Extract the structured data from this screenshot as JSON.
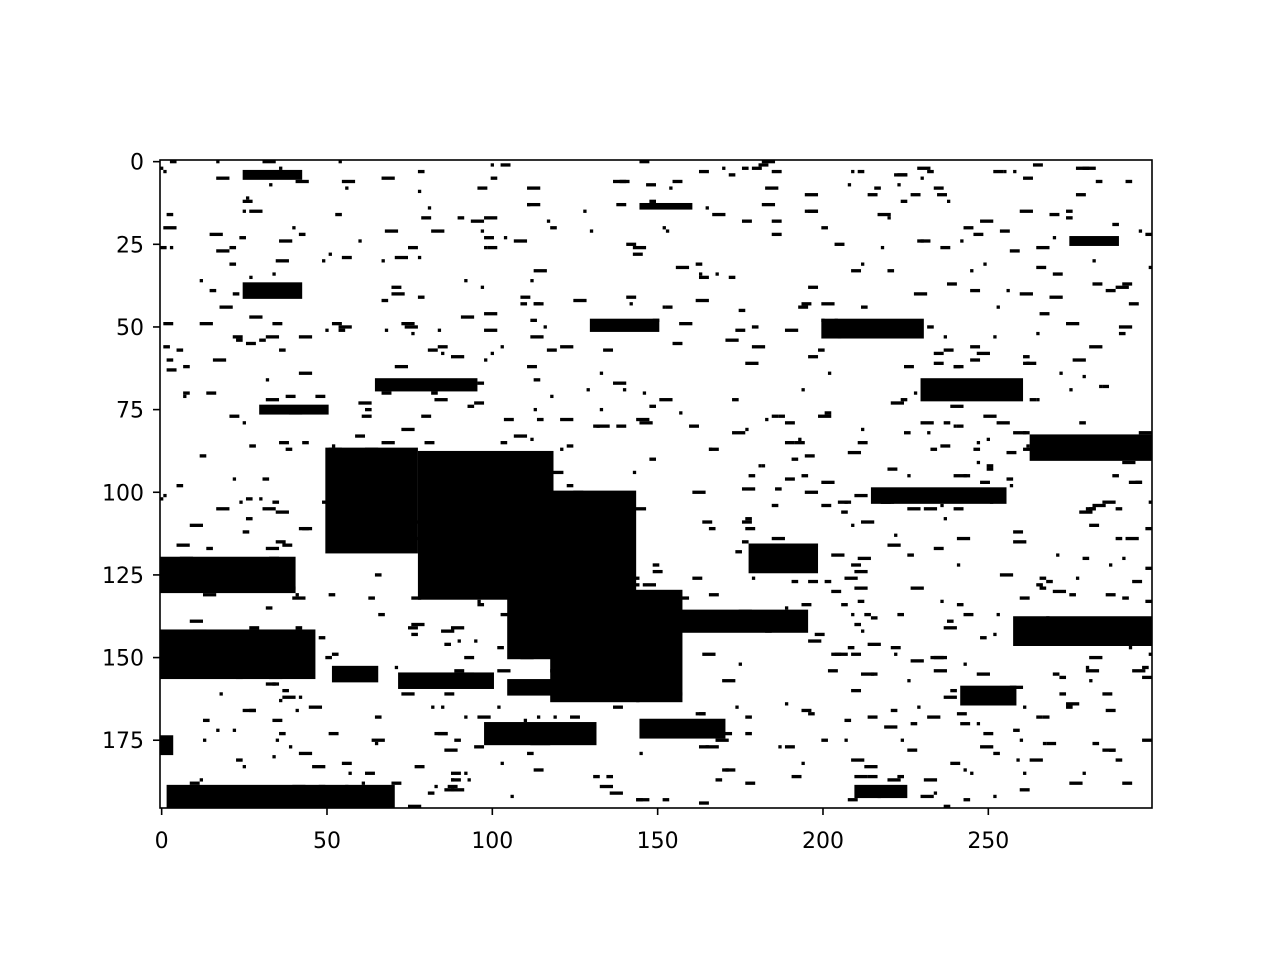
{
  "chart_data": {
    "type": "heatmap",
    "title": "",
    "xlabel": "",
    "ylabel": "",
    "colormap": "binary",
    "colors": {
      "foreground": "#000000",
      "background": "#ffffff"
    },
    "xlim": [
      0,
      299
    ],
    "ylim": [
      195,
      0
    ],
    "y_axis_inverted": true,
    "grid": false,
    "legend": "none",
    "x_ticks": [
      0,
      50,
      100,
      150,
      200,
      250
    ],
    "y_ticks": [
      0,
      25,
      50,
      75,
      100,
      125,
      150,
      175
    ],
    "x_tick_labels": [
      "0",
      "50",
      "100",
      "150",
      "200",
      "250"
    ],
    "y_tick_labels": [
      "0",
      "25",
      "50",
      "75",
      "100",
      "125",
      "150",
      "175"
    ],
    "image_width": 300,
    "image_height": 196,
    "regions": [
      {
        "x": [
          50,
          77
        ],
        "y": [
          87,
          118
        ]
      },
      {
        "x": [
          78,
          118
        ],
        "y": [
          88,
          132
        ]
      },
      {
        "x": [
          105,
          143
        ],
        "y": [
          100,
          150
        ]
      },
      {
        "x": [
          118,
          157
        ],
        "y": [
          130,
          163
        ]
      },
      {
        "x": [
          0,
          46
        ],
        "y": [
          142,
          156
        ]
      },
      {
        "x": [
          52,
          65
        ],
        "y": [
          153,
          157
        ]
      },
      {
        "x": [
          72,
          100
        ],
        "y": [
          155,
          159
        ]
      },
      {
        "x": [
          105,
          124
        ],
        "y": [
          157,
          161
        ]
      },
      {
        "x": [
          263,
          299
        ],
        "y": [
          83,
          90
        ]
      },
      {
        "x": [
          258,
          299
        ],
        "y": [
          138,
          146
        ]
      },
      {
        "x": [
          242,
          258
        ],
        "y": [
          159,
          164
        ]
      },
      {
        "x": [
          98,
          131
        ],
        "y": [
          170,
          176
        ]
      },
      {
        "x": [
          145,
          170
        ],
        "y": [
          169,
          174
        ]
      },
      {
        "x": [
          150,
          195
        ],
        "y": [
          136,
          142
        ]
      },
      {
        "x": [
          178,
          198
        ],
        "y": [
          116,
          124
        ]
      },
      {
        "x": [
          215,
          255
        ],
        "y": [
          99,
          103
        ]
      },
      {
        "x": [
          230,
          260
        ],
        "y": [
          66,
          72
        ]
      },
      {
        "x": [
          0,
          40
        ],
        "y": [
          120,
          130
        ]
      },
      {
        "x": [
          25,
          42
        ],
        "y": [
          37,
          41
        ]
      },
      {
        "x": [
          30,
          50
        ],
        "y": [
          74,
          76
        ]
      },
      {
        "x": [
          65,
          95
        ],
        "y": [
          66,
          69
        ]
      },
      {
        "x": [
          130,
          150
        ],
        "y": [
          48,
          51
        ]
      },
      {
        "x": [
          275,
          289
        ],
        "y": [
          23,
          25
        ]
      },
      {
        "x": [
          0,
          3
        ],
        "y": [
          174,
          179
        ]
      },
      {
        "x": [
          145,
          160
        ],
        "y": [
          13,
          14
        ]
      },
      {
        "x": [
          25,
          42
        ],
        "y": [
          3,
          5
        ]
      },
      {
        "x": [
          200,
          230
        ],
        "y": [
          48,
          53
        ]
      },
      {
        "x": [
          210,
          225
        ],
        "y": [
          189,
          192
        ]
      },
      {
        "x": [
          2,
          70
        ],
        "y": [
          189,
          195
        ]
      }
    ]
  }
}
